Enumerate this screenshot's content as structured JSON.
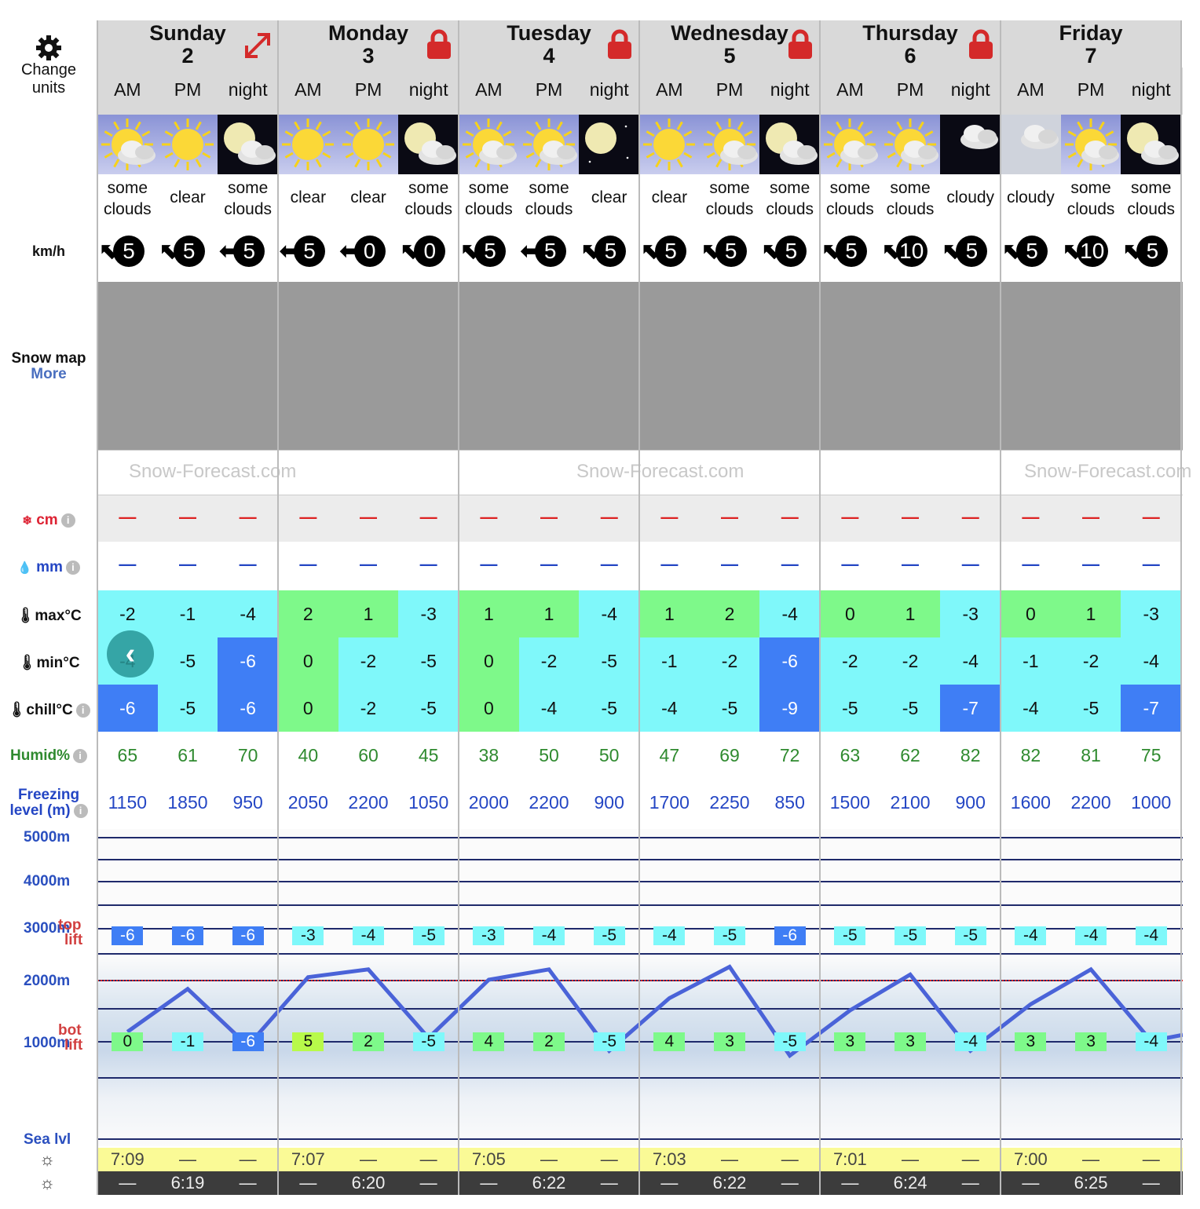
{
  "controls": {
    "change_units": "Change units",
    "wind_unit": "km/h",
    "snow_map": "Snow map",
    "more": "More"
  },
  "days": [
    {
      "name": "Sunday",
      "date": "2",
      "icon": "expand-icon"
    },
    {
      "name": "Monday",
      "date": "3",
      "icon": "lock-icon"
    },
    {
      "name": "Tuesday",
      "date": "4",
      "icon": "lock-icon"
    },
    {
      "name": "Wednesday",
      "date": "5",
      "icon": "lock-icon"
    },
    {
      "name": "Thursday",
      "date": "6",
      "icon": "lock-icon"
    },
    {
      "name": "Friday",
      "date": "7",
      "icon": "none"
    }
  ],
  "periods": [
    "AM",
    "PM",
    "night"
  ],
  "slots": [
    {
      "sky": "some-clouds-sun",
      "text": "some clouds",
      "wind": "5",
      "wdir": "NW",
      "snow": "—",
      "rain": "—",
      "max": "-2",
      "min": "-4",
      "chill": "-6",
      "humid": "65",
      "freeze": "1150",
      "top": "-6",
      "bot": "0",
      "rise": "7:09",
      "set": "—"
    },
    {
      "sky": "clear-sun",
      "text": "clear",
      "wind": "5",
      "wdir": "NW",
      "snow": "—",
      "rain": "—",
      "max": "-1",
      "min": "-5",
      "chill": "-5",
      "humid": "61",
      "freeze": "1850",
      "top": "-6",
      "bot": "-1",
      "rise": "—",
      "set": "6:19"
    },
    {
      "sky": "some-clouds-moon",
      "text": "some clouds",
      "wind": "5",
      "wdir": "W",
      "snow": "—",
      "rain": "—",
      "max": "-4",
      "min": "-6",
      "chill": "-6",
      "humid": "70",
      "freeze": "950",
      "top": "-6",
      "bot": "-6",
      "rise": "—",
      "set": "—"
    },
    {
      "sky": "clear-sun",
      "text": "clear",
      "wind": "5",
      "wdir": "W",
      "snow": "—",
      "rain": "—",
      "max": "2",
      "min": "0",
      "chill": "0",
      "humid": "40",
      "freeze": "2050",
      "top": "-3",
      "bot": "5",
      "rise": "7:07",
      "set": "—"
    },
    {
      "sky": "clear-sun",
      "text": "clear",
      "wind": "0",
      "wdir": "W",
      "snow": "—",
      "rain": "—",
      "max": "1",
      "min": "-2",
      "chill": "-2",
      "humid": "60",
      "freeze": "2200",
      "top": "-4",
      "bot": "2",
      "rise": "—",
      "set": "6:20"
    },
    {
      "sky": "some-clouds-moon",
      "text": "some clouds",
      "wind": "0",
      "wdir": "NW",
      "snow": "—",
      "rain": "—",
      "max": "-3",
      "min": "-5",
      "chill": "-5",
      "humid": "45",
      "freeze": "1050",
      "top": "-5",
      "bot": "-5",
      "rise": "—",
      "set": "—"
    },
    {
      "sky": "some-clouds-sun",
      "text": "some clouds",
      "wind": "5",
      "wdir": "NW",
      "snow": "—",
      "rain": "—",
      "max": "1",
      "min": "0",
      "chill": "0",
      "humid": "38",
      "freeze": "2000",
      "top": "-3",
      "bot": "4",
      "rise": "7:05",
      "set": "—"
    },
    {
      "sky": "some-clouds-sun",
      "text": "some clouds",
      "wind": "5",
      "wdir": "W",
      "snow": "—",
      "rain": "—",
      "max": "1",
      "min": "-2",
      "chill": "-4",
      "humid": "50",
      "freeze": "2200",
      "top": "-4",
      "bot": "2",
      "rise": "—",
      "set": "6:22"
    },
    {
      "sky": "clear-moon",
      "text": "clear",
      "wind": "5",
      "wdir": "NW",
      "snow": "—",
      "rain": "—",
      "max": "-4",
      "min": "-5",
      "chill": "-5",
      "humid": "50",
      "freeze": "900",
      "top": "-5",
      "bot": "-5",
      "rise": "—",
      "set": "—"
    },
    {
      "sky": "clear-sun",
      "text": "clear",
      "wind": "5",
      "wdir": "NW",
      "snow": "—",
      "rain": "—",
      "max": "1",
      "min": "-1",
      "chill": "-4",
      "humid": "47",
      "freeze": "1700",
      "top": "-4",
      "bot": "4",
      "rise": "7:03",
      "set": "—"
    },
    {
      "sky": "some-clouds-sun",
      "text": "some clouds",
      "wind": "5",
      "wdir": "NW",
      "snow": "—",
      "rain": "—",
      "max": "2",
      "min": "-2",
      "chill": "-5",
      "humid": "69",
      "freeze": "2250",
      "top": "-5",
      "bot": "3",
      "rise": "—",
      "set": "6:22"
    },
    {
      "sky": "some-clouds-moon",
      "text": "some clouds",
      "wind": "5",
      "wdir": "NW",
      "snow": "—",
      "rain": "—",
      "max": "-4",
      "min": "-6",
      "chill": "-9",
      "humid": "72",
      "freeze": "850",
      "top": "-6",
      "bot": "-5",
      "rise": "—",
      "set": "—"
    },
    {
      "sky": "some-clouds-sun",
      "text": "some clouds",
      "wind": "5",
      "wdir": "NW",
      "snow": "—",
      "rain": "—",
      "max": "0",
      "min": "-2",
      "chill": "-5",
      "humid": "63",
      "freeze": "1500",
      "top": "-5",
      "bot": "3",
      "rise": "7:01",
      "set": "—"
    },
    {
      "sky": "some-clouds-sun",
      "text": "some clouds",
      "wind": "10",
      "wdir": "NW",
      "snow": "—",
      "rain": "—",
      "max": "1",
      "min": "-2",
      "chill": "-5",
      "humid": "62",
      "freeze": "2100",
      "top": "-5",
      "bot": "3",
      "rise": "—",
      "set": "6:24"
    },
    {
      "sky": "cloudy-night",
      "text": "cloudy",
      "wind": "5",
      "wdir": "NW",
      "snow": "—",
      "rain": "—",
      "max": "-3",
      "min": "-4",
      "chill": "-7",
      "humid": "82",
      "freeze": "900",
      "top": "-5",
      "bot": "-4",
      "rise": "—",
      "set": "—"
    },
    {
      "sky": "cloudy-day",
      "text": "cloudy",
      "wind": "5",
      "wdir": "NW",
      "snow": "—",
      "rain": "—",
      "max": "0",
      "min": "-1",
      "chill": "-4",
      "humid": "82",
      "freeze": "1600",
      "top": "-4",
      "bot": "3",
      "rise": "7:00",
      "set": "—"
    },
    {
      "sky": "some-clouds-sun",
      "text": "some clouds",
      "wind": "10",
      "wdir": "NW",
      "snow": "—",
      "rain": "—",
      "max": "1",
      "min": "-2",
      "chill": "-5",
      "humid": "81",
      "freeze": "2200",
      "top": "-4",
      "bot": "3",
      "rise": "—",
      "set": "6:25"
    },
    {
      "sky": "some-clouds-moon",
      "text": "some clouds",
      "wind": "5",
      "wdir": "NW",
      "snow": "—",
      "rain": "—",
      "max": "-3",
      "min": "-4",
      "chill": "-7",
      "humid": "75",
      "freeze": "1000",
      "top": "-4",
      "bot": "-4",
      "rise": "—",
      "set": "—"
    }
  ],
  "rows": {
    "snow": "cm",
    "rain": "mm",
    "max": "max°C",
    "min": "min°C",
    "chill": "chill°C",
    "humid": "Humid%",
    "freeze_1": "Freezing",
    "freeze_2": "level (m)"
  },
  "altitude": {
    "labels": [
      "5000m",
      "4000m",
      "3000m",
      "2000m",
      "1000m",
      "Sea lvl"
    ],
    "top_lift_1": "top",
    "top_lift_2": "lift",
    "bot_lift_1": "bot",
    "bot_lift_2": "lift"
  },
  "watermark": "Snow-Forecast.com",
  "colors": {
    "header": "#d9d9d9",
    "cyan": "#7ff8fa",
    "green": "#7ef98a",
    "blue": "#3f7ef5",
    "lime": "#b8fa4a",
    "freeze_line": "#4a63d8",
    "sun_row": "#fafa96",
    "set_row": "#3c3c3c"
  }
}
